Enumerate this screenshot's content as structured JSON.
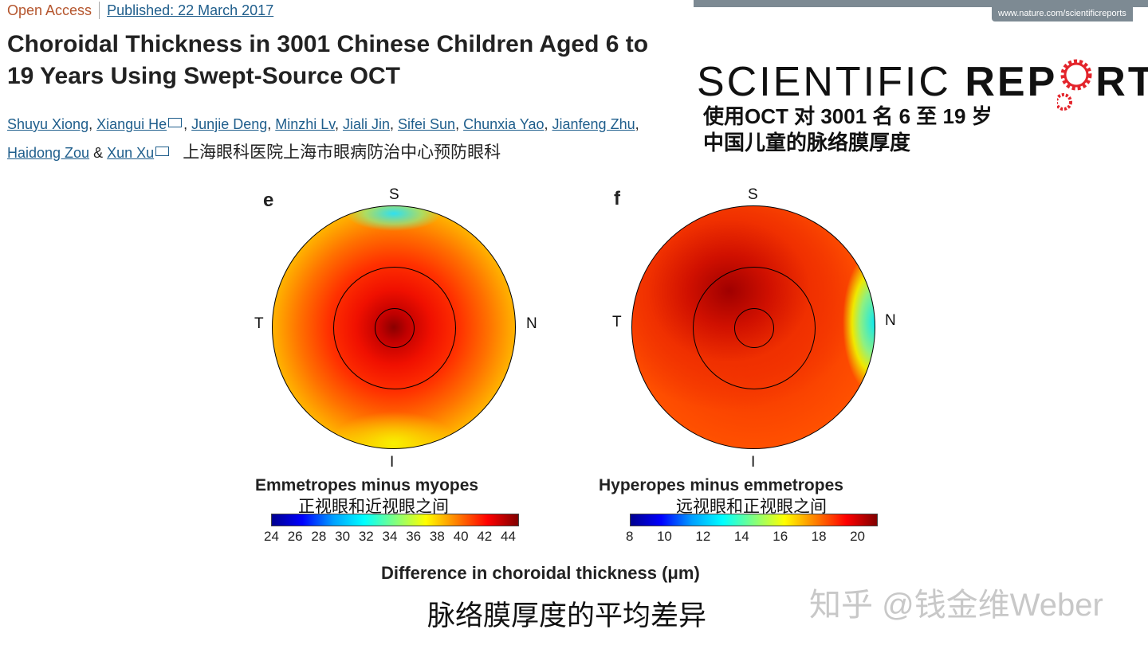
{
  "header": {
    "open_access": "Open Access",
    "published": "Published: 22 March 2017",
    "title": "Choroidal Thickness in 3001 Chinese Children Aged 6 to 19 Years Using Swept-Source OCT",
    "authors": [
      "Shuyu Xiong",
      "Xiangui He",
      "Junjie Deng",
      "Minzhi Lv",
      "Jiali Jin",
      "Sifei Sun",
      "Chunxia Yao",
      "Jianfeng Zhu",
      "Haidong Zou",
      "Xun Xu"
    ],
    "and": "&",
    "affiliation_cn": "上海眼科医院上海市眼病防治中心预防眼科"
  },
  "journal": {
    "url": "www.nature.com/scientificreports",
    "logo_part1": "SCIENTIFIC",
    "logo_part2": "REP",
    "logo_part3": "RTS",
    "title_cn_line1": "使用OCT 对 3001 名 6 至 19 岁",
    "title_cn_line2": "中国儿童的脉络膜厚度",
    "gear_color": "#e3242b"
  },
  "figure": {
    "panels": [
      {
        "letter": "e",
        "S": "S",
        "T": "T",
        "N": "N",
        "I": "I",
        "subtitle": "Emmetropes minus myopes",
        "subtitle_cn": "正视眼和近视眼之间",
        "ticks": [
          "24",
          "26",
          "28",
          "30",
          "32",
          "34",
          "36",
          "38",
          "40",
          "42",
          "44"
        ]
      },
      {
        "letter": "f",
        "S": "S",
        "T": "T",
        "N": "N",
        "I": "I",
        "subtitle": "Hyperopes minus emmetropes",
        "subtitle_cn": "远视眼和正视眼之间",
        "ticks": [
          "8",
          "10",
          "12",
          "14",
          "16",
          "18",
          "20"
        ]
      }
    ],
    "xlabel": "Difference in choroidal thickness (μm)",
    "caption_cn": "脉络膜厚度的平均差异"
  },
  "watermark": "知乎 @钱金维Weber"
}
